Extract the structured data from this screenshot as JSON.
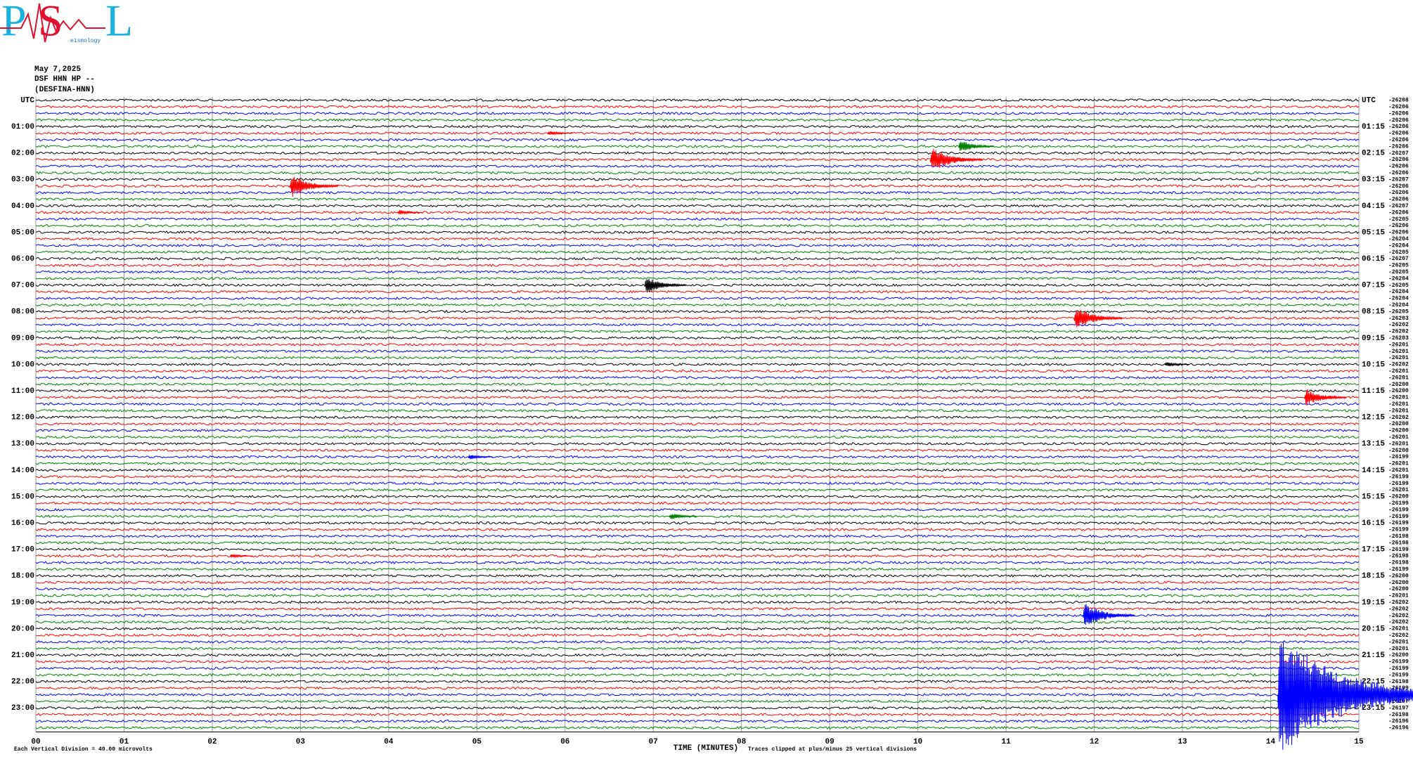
{
  "chart_data": {
    "type": "helicorder",
    "logo": [
      "P",
      "S",
      "L"
    ],
    "logo_text": "eismology",
    "title": "May 7,2025",
    "subtitle": [
      "DSF HHN HP --",
      "(DESFINA-HNN)"
    ],
    "left_labels": [
      "UTC",
      "01:00",
      "02:00",
      "03:00",
      "04:00",
      "05:00",
      "06:00",
      "07:00",
      "08:00",
      "09:00",
      "10:00",
      "11:00",
      "12:00",
      "13:00",
      "14:00",
      "15:00",
      "16:00",
      "17:00",
      "18:00",
      "19:00",
      "20:00",
      "21:00",
      "22:00",
      "23:00"
    ],
    "right_labels": [
      "UTC",
      "01:15",
      "02:15",
      "03:15",
      "04:15",
      "05:15",
      "06:15",
      "07:15",
      "08:15",
      "09:15",
      "10:15",
      "11:15",
      "12:15",
      "13:15",
      "14:15",
      "15:15",
      "16:15",
      "17:15",
      "18:15",
      "19:15",
      "20:15",
      "21:15",
      "22:15",
      "23:15"
    ],
    "colors": [
      "#000000",
      "#ff0000",
      "#0000ff",
      "#008000"
    ],
    "offsets": [
      -26208,
      -26206,
      -26206,
      -26206,
      -26206,
      -26206,
      -26206,
      -26206,
      -26207,
      -26206,
      -26206,
      -26206,
      -26207,
      -26206,
      -26206,
      -26206,
      -26207,
      -26206,
      -26205,
      -26206,
      -26206,
      -26204,
      -26204,
      -26205,
      -26207,
      -26205,
      -26205,
      -26204,
      -26205,
      -26204,
      -26204,
      -26204,
      -26205,
      -26203,
      -26202,
      -26202,
      -26203,
      -26201,
      -26201,
      -26201,
      -26202,
      -26201,
      -26201,
      -26200,
      -26200,
      -26201,
      -26201,
      -26201,
      -26202,
      -26200,
      -26200,
      -26201,
      -26201,
      -26200,
      -26199,
      -26201,
      -26201,
      -26199,
      -26199,
      -26201,
      -26200,
      -26199,
      -26199,
      -26199,
      -26199,
      -26199,
      -26198,
      -26198,
      -26199,
      -26198,
      -26198,
      -26199,
      -26200,
      -26200,
      -26200,
      -26201,
      -26202,
      -26202,
      -26202,
      -26202,
      -26201,
      -26202,
      -26201,
      -26201,
      -26200,
      -26199,
      -26199,
      -26199,
      -26198,
      -26199,
      -26197,
      -26197,
      -26197,
      -26198,
      -26196,
      -26196
    ],
    "xlim": [
      0,
      15
    ],
    "xticks": [
      {
        "value": 0,
        "label": "00"
      },
      {
        "value": 1,
        "label": "01"
      },
      {
        "value": 2,
        "label": "02"
      },
      {
        "value": 3,
        "label": "03"
      },
      {
        "value": 4,
        "label": "04"
      },
      {
        "value": 5,
        "label": "05"
      },
      {
        "value": 6,
        "label": "06"
      },
      {
        "value": 7,
        "label": "07"
      },
      {
        "value": 8,
        "label": "08"
      },
      {
        "value": 9,
        "label": "09"
      },
      10,
      11,
      12,
      13,
      14,
      15
    ],
    "xlabel": "TIME (MINUTES)",
    "clip_note": "Traces clipped at plus/minus 25 vertical divisions",
    "scale_note": "Each Vertical Division =   40.00 microvolts",
    "events": [
      {
        "row": 9,
        "minute": 10.14,
        "amplitude": 2.2
      },
      {
        "row": 7,
        "minute": 10.46,
        "amplitude": 1.2
      },
      {
        "row": 13,
        "minute": 2.88,
        "amplitude": 2.0
      },
      {
        "row": 28,
        "minute": 6.9,
        "amplitude": 1.6
      },
      {
        "row": 33,
        "minute": 11.77,
        "amplitude": 2.0
      },
      {
        "row": 45,
        "minute": 14.38,
        "amplitude": 1.6
      },
      {
        "row": 40,
        "minute": 12.8,
        "amplitude": 0.5
      },
      {
        "row": 63,
        "minute": 7.18,
        "amplitude": 0.7
      },
      {
        "row": 78,
        "minute": 11.87,
        "amplitude": 2.2
      },
      {
        "row": 90,
        "minute": 14.08,
        "amplitude": 10
      },
      {
        "row": 90,
        "minute": 14.44,
        "amplitude": 1.5
      },
      {
        "row": 5,
        "minute": 5.8,
        "amplitude": 0.5
      },
      {
        "row": 17,
        "minute": 4.1,
        "amplitude": 0.5
      },
      {
        "row": 69,
        "minute": 2.2,
        "amplitude": 0.4
      },
      {
        "row": 54,
        "minute": 4.9,
        "amplitude": 0.5
      }
    ]
  }
}
